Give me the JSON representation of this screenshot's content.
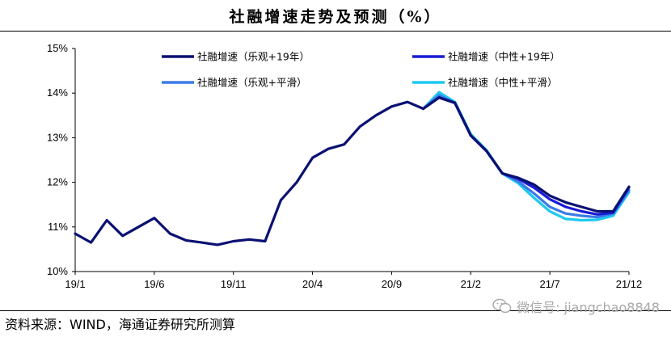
{
  "title": "社融增速走势及预测（%）",
  "source": "资料来源：WIND，海通证券研究所测算",
  "watermark": "微信号: jiangchao8848",
  "chart_data": {
    "type": "line",
    "title": "社融增速走势及预测（%）",
    "xlabel": "",
    "ylabel": "",
    "ylim": [
      10,
      15
    ],
    "yticks": [
      "10%",
      "11%",
      "12%",
      "13%",
      "14%",
      "15%"
    ],
    "xticks": [
      "19/1",
      "19/6",
      "19/11",
      "20/4",
      "20/9",
      "21/2",
      "21/7",
      "21/12"
    ],
    "grid": false,
    "legend_position": "top",
    "x": [
      "19/1",
      "19/2",
      "19/3",
      "19/4",
      "19/5",
      "19/6",
      "19/7",
      "19/8",
      "19/9",
      "19/10",
      "19/11",
      "19/12",
      "20/1",
      "20/2",
      "20/3",
      "20/4",
      "20/5",
      "20/6",
      "20/7",
      "20/8",
      "20/9",
      "20/10",
      "20/11",
      "20/12",
      "21/1",
      "21/2",
      "21/3",
      "21/4",
      "21/5",
      "21/6",
      "21/7",
      "21/8",
      "21/9",
      "21/10",
      "21/11",
      "21/12"
    ],
    "series": [
      {
        "name": "社融增速（乐观+19年）",
        "color": "#0a1172",
        "values": [
          10.85,
          10.65,
          11.15,
          10.8,
          11.0,
          11.2,
          10.85,
          10.7,
          10.65,
          10.6,
          10.68,
          10.72,
          10.68,
          11.6,
          12.0,
          12.55,
          12.75,
          12.85,
          13.25,
          13.5,
          13.7,
          13.8,
          13.65,
          13.9,
          13.78,
          13.05,
          12.7,
          12.2,
          12.1,
          11.95,
          11.7,
          11.55,
          11.45,
          11.35,
          11.35,
          11.9
        ]
      },
      {
        "name": "社融增速（中性+19年）",
        "color": "#1a1ad6",
        "values": [
          null,
          null,
          null,
          null,
          null,
          null,
          null,
          null,
          null,
          null,
          null,
          null,
          null,
          null,
          null,
          null,
          null,
          null,
          null,
          null,
          null,
          null,
          13.65,
          13.9,
          13.78,
          13.05,
          12.7,
          12.2,
          12.08,
          11.88,
          11.62,
          11.45,
          11.35,
          11.28,
          11.32,
          11.88
        ]
      },
      {
        "name": "社融增速（乐观+平滑）",
        "color": "#3a7be6",
        "values": [
          null,
          null,
          null,
          null,
          null,
          null,
          null,
          null,
          null,
          null,
          null,
          null,
          null,
          null,
          null,
          null,
          null,
          null,
          null,
          null,
          null,
          null,
          13.65,
          13.95,
          13.78,
          13.05,
          12.7,
          12.2,
          12.02,
          11.75,
          11.45,
          11.3,
          11.25,
          11.22,
          11.3,
          11.82
        ]
      },
      {
        "name": "社融增速（中性+平滑）",
        "color": "#1ec8f0",
        "values": [
          null,
          null,
          null,
          null,
          null,
          null,
          null,
          null,
          null,
          null,
          null,
          null,
          null,
          null,
          null,
          null,
          null,
          null,
          null,
          null,
          null,
          null,
          13.65,
          14.02,
          13.8,
          13.08,
          12.72,
          12.2,
          11.98,
          11.65,
          11.35,
          11.18,
          11.15,
          11.16,
          11.25,
          11.78
        ]
      }
    ]
  }
}
